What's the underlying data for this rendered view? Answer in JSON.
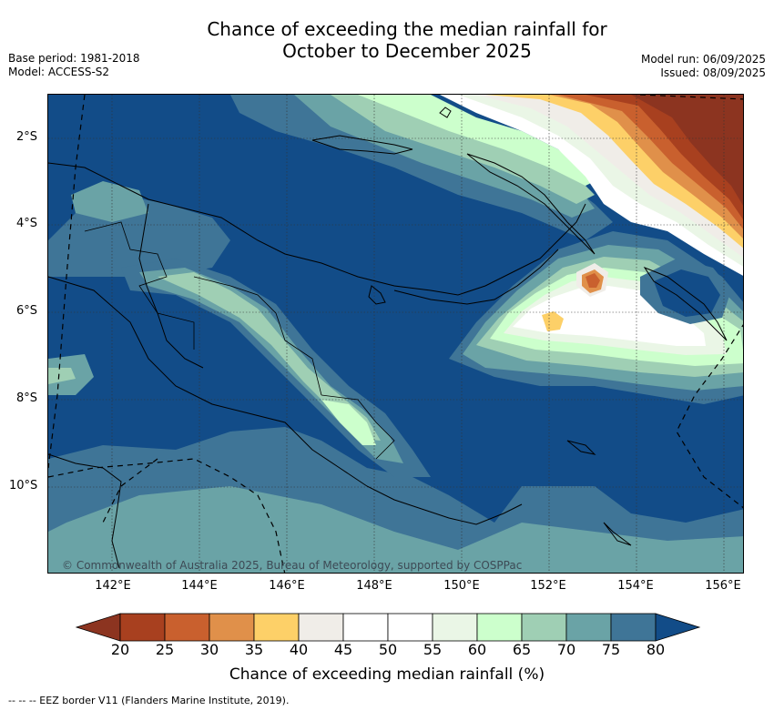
{
  "header": {
    "title_line1": "Chance of exceeding the median rainfall for",
    "title_line2": "October to December 2025",
    "base_period": "Base period: 1981-2018",
    "model": "Model: ACCESS-S2",
    "model_run": "Model run: 06/09/2025",
    "issued": "Issued: 08/09/2025"
  },
  "map": {
    "lat_labels": [
      "2°S",
      "4°S",
      "6°S",
      "8°S",
      "10°S"
    ],
    "lon_labels": [
      "142°E",
      "144°E",
      "146°E",
      "148°E",
      "150°E",
      "152°E",
      "154°E",
      "156°E"
    ],
    "copyright": "© Commonwealth of Australia 2025, Bureau of Meteorology, supported by COSPPac"
  },
  "colorbar": {
    "ticks": [
      "20",
      "25",
      "30",
      "35",
      "40",
      "45",
      "50",
      "55",
      "60",
      "65",
      "70",
      "75",
      "80"
    ],
    "colors": [
      "#a8401f",
      "#c9602e",
      "#e0904a",
      "#fdd068",
      "#f0ede8",
      "#ffffff",
      "#ffffff",
      "#eaf6e6",
      "#ccffcc",
      "#9fcfb4",
      "#6aa3a6",
      "#3f7597"
    ],
    "under_color": "#8c3420",
    "over_color": "#124c88",
    "title": "Chance of exceeding median rainfall (%)"
  },
  "footer": {
    "eez_note": "--  --  -- EEZ border V11 (Flanders Marine Institute, 2019)."
  }
}
